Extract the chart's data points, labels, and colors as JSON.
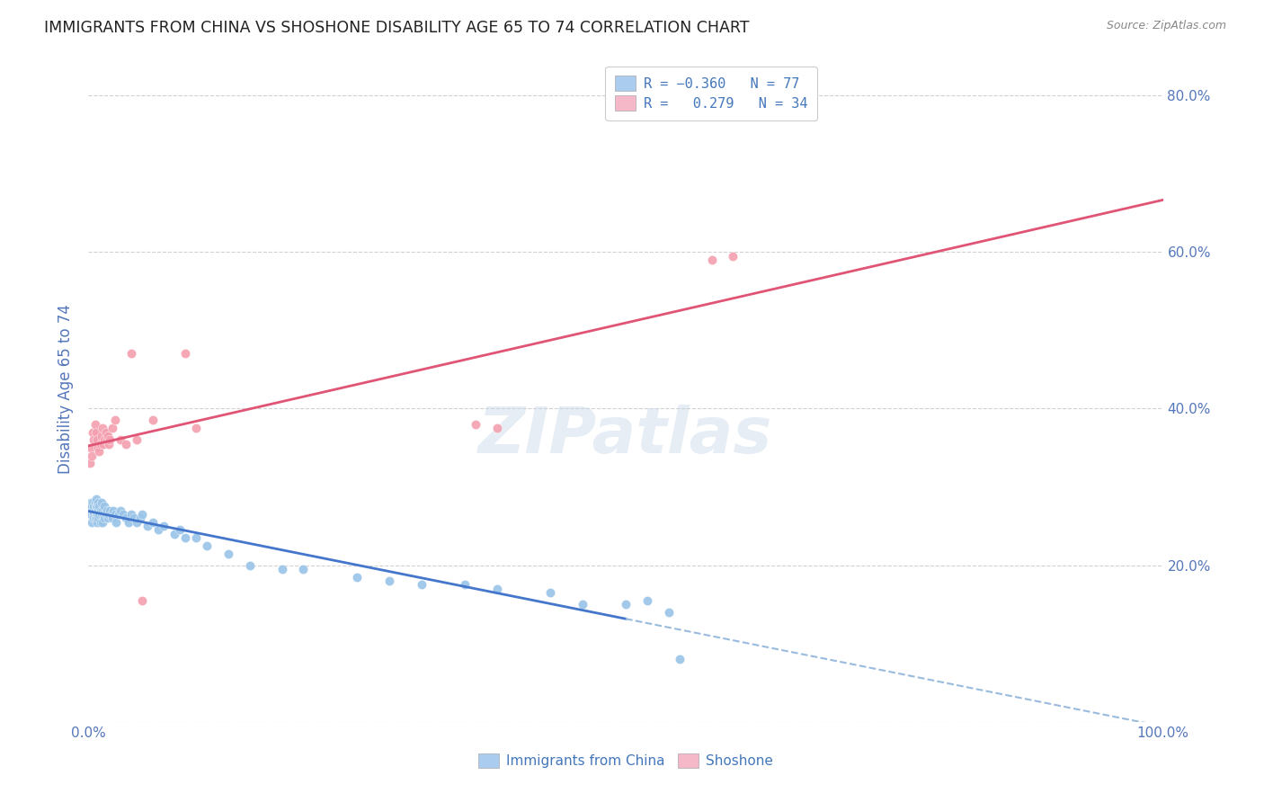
{
  "title": "IMMIGRANTS FROM CHINA VS SHOSHONE DISABILITY AGE 65 TO 74 CORRELATION CHART",
  "source": "Source: ZipAtlas.com",
  "ylabel": "Disability Age 65 to 74",
  "china_color": "#99c4e8",
  "shoshone_color": "#f4a0b0",
  "china_line_color": "#4477cc",
  "shoshone_line_color": "#e05575",
  "china_dash_color": "#99bbdd",
  "background_color": "#ffffff",
  "grid_color": "#cccccc",
  "title_color": "#333333",
  "tick_color": "#5577bb",
  "legend_patch_china": "#aaccee",
  "legend_patch_shoshone": "#f4b8c8",
  "figsize": [
    14.06,
    8.92
  ],
  "dpi": 100,
  "xlim": [
    0.0,
    1.0
  ],
  "ylim": [
    0.0,
    0.85
  ],
  "china_x": [
    0.001,
    0.002,
    0.002,
    0.003,
    0.003,
    0.004,
    0.004,
    0.005,
    0.005,
    0.005,
    0.006,
    0.006,
    0.006,
    0.007,
    0.007,
    0.007,
    0.008,
    0.008,
    0.008,
    0.009,
    0.009,
    0.009,
    0.01,
    0.01,
    0.011,
    0.011,
    0.012,
    0.012,
    0.013,
    0.013,
    0.014,
    0.015,
    0.015,
    0.016,
    0.017,
    0.018,
    0.019,
    0.02,
    0.021,
    0.022,
    0.023,
    0.025,
    0.026,
    0.028,
    0.03,
    0.032,
    0.035,
    0.037,
    0.04,
    0.042,
    0.045,
    0.048,
    0.05,
    0.055,
    0.06,
    0.065,
    0.07,
    0.08,
    0.085,
    0.09,
    0.1,
    0.11,
    0.13,
    0.15,
    0.18,
    0.2,
    0.25,
    0.28,
    0.31,
    0.35,
    0.38,
    0.43,
    0.46,
    0.5,
    0.52,
    0.54,
    0.55
  ],
  "china_y": [
    0.27,
    0.265,
    0.28,
    0.255,
    0.275,
    0.27,
    0.28,
    0.265,
    0.275,
    0.26,
    0.27,
    0.28,
    0.26,
    0.275,
    0.26,
    0.285,
    0.265,
    0.275,
    0.255,
    0.27,
    0.26,
    0.28,
    0.265,
    0.275,
    0.27,
    0.255,
    0.265,
    0.28,
    0.255,
    0.27,
    0.265,
    0.26,
    0.275,
    0.265,
    0.27,
    0.26,
    0.265,
    0.27,
    0.265,
    0.26,
    0.27,
    0.265,
    0.255,
    0.265,
    0.27,
    0.265,
    0.26,
    0.255,
    0.265,
    0.26,
    0.255,
    0.26,
    0.265,
    0.25,
    0.255,
    0.245,
    0.25,
    0.24,
    0.245,
    0.235,
    0.235,
    0.225,
    0.215,
    0.2,
    0.195,
    0.195,
    0.185,
    0.18,
    0.175,
    0.175,
    0.17,
    0.165,
    0.15,
    0.15,
    0.155,
    0.14,
    0.08
  ],
  "shoshone_x": [
    0.001,
    0.002,
    0.003,
    0.004,
    0.005,
    0.006,
    0.007,
    0.008,
    0.009,
    0.01,
    0.011,
    0.012,
    0.013,
    0.014,
    0.015,
    0.016,
    0.017,
    0.018,
    0.019,
    0.02,
    0.022,
    0.025,
    0.03,
    0.035,
    0.04,
    0.045,
    0.05,
    0.06,
    0.36,
    0.38,
    0.58,
    0.6,
    0.09,
    0.1
  ],
  "shoshone_y": [
    0.33,
    0.35,
    0.34,
    0.37,
    0.36,
    0.38,
    0.37,
    0.36,
    0.35,
    0.345,
    0.355,
    0.365,
    0.375,
    0.355,
    0.36,
    0.37,
    0.36,
    0.365,
    0.355,
    0.36,
    0.375,
    0.385,
    0.36,
    0.355,
    0.47,
    0.36,
    0.155,
    0.385,
    0.38,
    0.375,
    0.59,
    0.595,
    0.47,
    0.375
  ]
}
